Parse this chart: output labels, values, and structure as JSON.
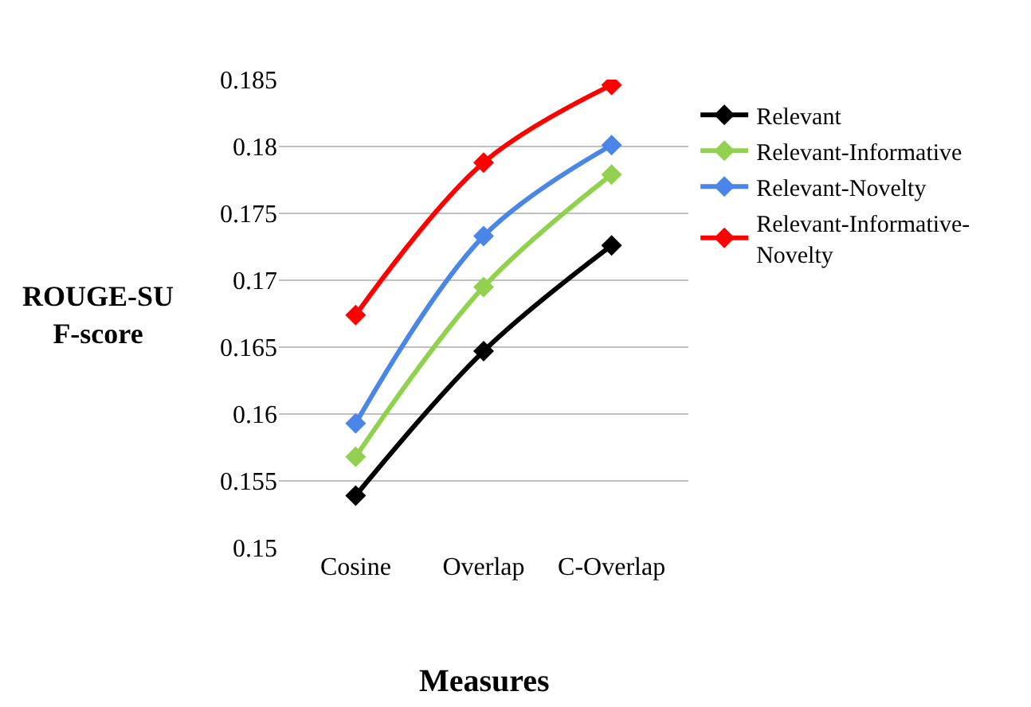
{
  "chart_data": {
    "type": "line",
    "xlabel": "Measures",
    "ylabel": "ROUGE-SU F-score",
    "categories": [
      "Cosine",
      "Overlap",
      "C-Overlap"
    ],
    "series": [
      {
        "name": "Relevant",
        "color": "#000000",
        "values": [
          0.1539,
          0.1647,
          0.1726
        ]
      },
      {
        "name": "Relevant-Informative",
        "color": "#92d050",
        "values": [
          0.1568,
          0.1695,
          0.1779
        ]
      },
      {
        "name": "Relevant-Novelty",
        "color": "#4a86e8",
        "values": [
          0.1593,
          0.1733,
          0.1801
        ]
      },
      {
        "name": "Relevant-Informative-Novelty",
        "color": "#ff0000",
        "values": [
          0.1674,
          0.1788,
          0.1846
        ]
      }
    ],
    "ylim": [
      0.15,
      0.185
    ],
    "yticks": [
      0.15,
      0.155,
      0.16,
      0.165,
      0.17,
      0.175,
      0.18,
      0.185
    ],
    "grid": "y",
    "legend": "right",
    "marker": "diamond",
    "line_style": "solid"
  }
}
